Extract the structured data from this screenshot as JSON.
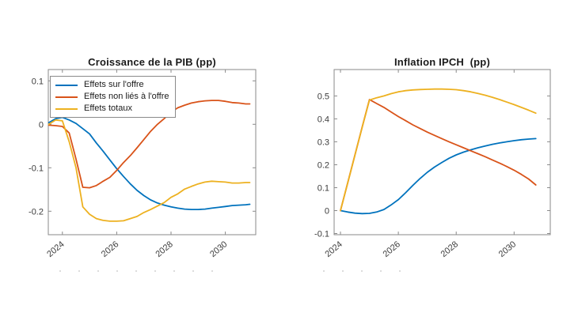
{
  "palette": {
    "background": "#ffffff",
    "axis_line": "#8a8a8a",
    "tick_label": "#3c3c3c",
    "title_color": "#1a1a1a",
    "legend_border": "#8a8a8a",
    "series_blue": "#0072BD",
    "series_orange": "#D95319",
    "series_yellow": "#EDB120"
  },
  "chart_data": [
    {
      "type": "line",
      "title": "Croissance de la PIB (pp)",
      "xlabel": "",
      "ylabel": "",
      "grid": false,
      "legend_position": "northwest-inside",
      "legend": [
        "Effets sur l'offre",
        "Effets non liés à l'offre",
        "Effets totaux"
      ],
      "xlim": [
        2023.48,
        2031.12
      ],
      "ylim": [
        -0.254,
        0.126
      ],
      "x_ticks": [
        2024,
        2026,
        2028,
        2030
      ],
      "x_tick_labels": [
        "2024",
        "2026",
        "2028",
        "2030"
      ],
      "y_ticks": [
        0.1,
        0,
        -0.1,
        -0.2
      ],
      "y_tick_labels": [
        "0.1",
        "0",
        "-0.1",
        "-0.2"
      ],
      "x": [
        2023.5,
        2023.75,
        2024,
        2024.25,
        2024.5,
        2024.75,
        2025,
        2025.25,
        2025.5,
        2025.75,
        2026,
        2026.25,
        2026.5,
        2026.75,
        2027,
        2027.25,
        2027.5,
        2027.75,
        2028,
        2028.25,
        2028.5,
        2028.75,
        2029,
        2029.25,
        2029.5,
        2029.75,
        2030,
        2030.25,
        2030.5,
        2030.75,
        2030.9
      ],
      "series": [
        {
          "name": "Effets sur l'offre",
          "color": "#0072BD",
          "values": [
            0.004,
            0.013,
            0.016,
            0.01,
            0.002,
            -0.01,
            -0.022,
            -0.043,
            -0.062,
            -0.082,
            -0.102,
            -0.12,
            -0.137,
            -0.152,
            -0.164,
            -0.174,
            -0.181,
            -0.186,
            -0.19,
            -0.193,
            -0.195,
            -0.196,
            -0.196,
            -0.195,
            -0.193,
            -0.191,
            -0.189,
            -0.187,
            -0.186,
            -0.185,
            -0.184
          ]
        },
        {
          "name": "Effets non liés à l'offre",
          "color": "#D95319",
          "values": [
            -0.002,
            -0.003,
            -0.005,
            -0.02,
            -0.08,
            -0.145,
            -0.146,
            -0.141,
            -0.131,
            -0.122,
            -0.106,
            -0.088,
            -0.072,
            -0.054,
            -0.035,
            -0.016,
            0.0,
            0.013,
            0.028,
            0.038,
            0.044,
            0.049,
            0.052,
            0.054,
            0.055,
            0.055,
            0.053,
            0.05,
            0.049,
            0.047,
            0.047
          ]
        },
        {
          "name": "Effets totaux",
          "color": "#EDB120",
          "values": [
            0.0,
            0.01,
            0.008,
            -0.04,
            -0.1,
            -0.19,
            -0.207,
            -0.217,
            -0.221,
            -0.223,
            -0.223,
            -0.222,
            -0.217,
            -0.212,
            -0.203,
            -0.196,
            -0.188,
            -0.18,
            -0.168,
            -0.16,
            -0.149,
            -0.143,
            -0.137,
            -0.133,
            -0.131,
            -0.132,
            -0.133,
            -0.135,
            -0.135,
            -0.134,
            -0.134
          ]
        }
      ]
    },
    {
      "type": "line",
      "title": "Inflation IPCH  (pp)",
      "xlabel": "",
      "ylabel": "",
      "grid": false,
      "legend": [],
      "xlim": [
        2023.78,
        2031.25
      ],
      "ylim": [
        -0.105,
        0.615
      ],
      "x_ticks": [
        2024,
        2026,
        2028,
        2030
      ],
      "x_tick_labels": [
        "2024",
        "2026",
        "2028",
        "2030"
      ],
      "y_ticks": [
        0.5,
        0.4,
        0.3,
        0.2,
        0.1,
        0,
        -0.1
      ],
      "y_tick_labels": [
        "0.5",
        "0.4",
        "0.3",
        "0.2",
        "0.1",
        "0",
        "-0.1"
      ],
      "x": [
        2024,
        2024.25,
        2024.5,
        2024.75,
        2025,
        2025.25,
        2025.5,
        2025.75,
        2026,
        2026.25,
        2026.5,
        2026.75,
        2027,
        2027.25,
        2027.5,
        2027.75,
        2028,
        2028.25,
        2028.5,
        2028.75,
        2029,
        2029.25,
        2029.5,
        2029.75,
        2030,
        2030.25,
        2030.5,
        2030.75
      ],
      "series": [
        {
          "name": "Effets sur l'offre",
          "color": "#0072BD",
          "values": [
            0.0,
            -0.006,
            -0.011,
            -0.013,
            -0.012,
            -0.006,
            0.005,
            0.025,
            0.048,
            0.078,
            0.11,
            0.14,
            0.167,
            0.19,
            0.21,
            0.228,
            0.243,
            0.255,
            0.265,
            0.274,
            0.282,
            0.289,
            0.295,
            0.3,
            0.305,
            0.309,
            0.312,
            0.314
          ]
        },
        {
          "name": "Effets non liés à l'offre",
          "color": "#D95319",
          "values": [
            0.0,
            0.122,
            0.243,
            0.364,
            0.484,
            0.467,
            0.45,
            0.43,
            0.41,
            0.392,
            0.374,
            0.358,
            0.342,
            0.328,
            0.314,
            0.3,
            0.287,
            0.274,
            0.261,
            0.248,
            0.235,
            0.221,
            0.207,
            0.192,
            0.176,
            0.158,
            0.138,
            0.112
          ]
        },
        {
          "name": "Effets totaux",
          "color": "#EDB120",
          "values": [
            0.0,
            0.121,
            0.242,
            0.363,
            0.482,
            0.492,
            0.5,
            0.51,
            0.518,
            0.523,
            0.526,
            0.528,
            0.529,
            0.53,
            0.53,
            0.529,
            0.527,
            0.523,
            0.518,
            0.511,
            0.503,
            0.494,
            0.484,
            0.473,
            0.462,
            0.45,
            0.438,
            0.425
          ]
        }
      ]
    }
  ]
}
